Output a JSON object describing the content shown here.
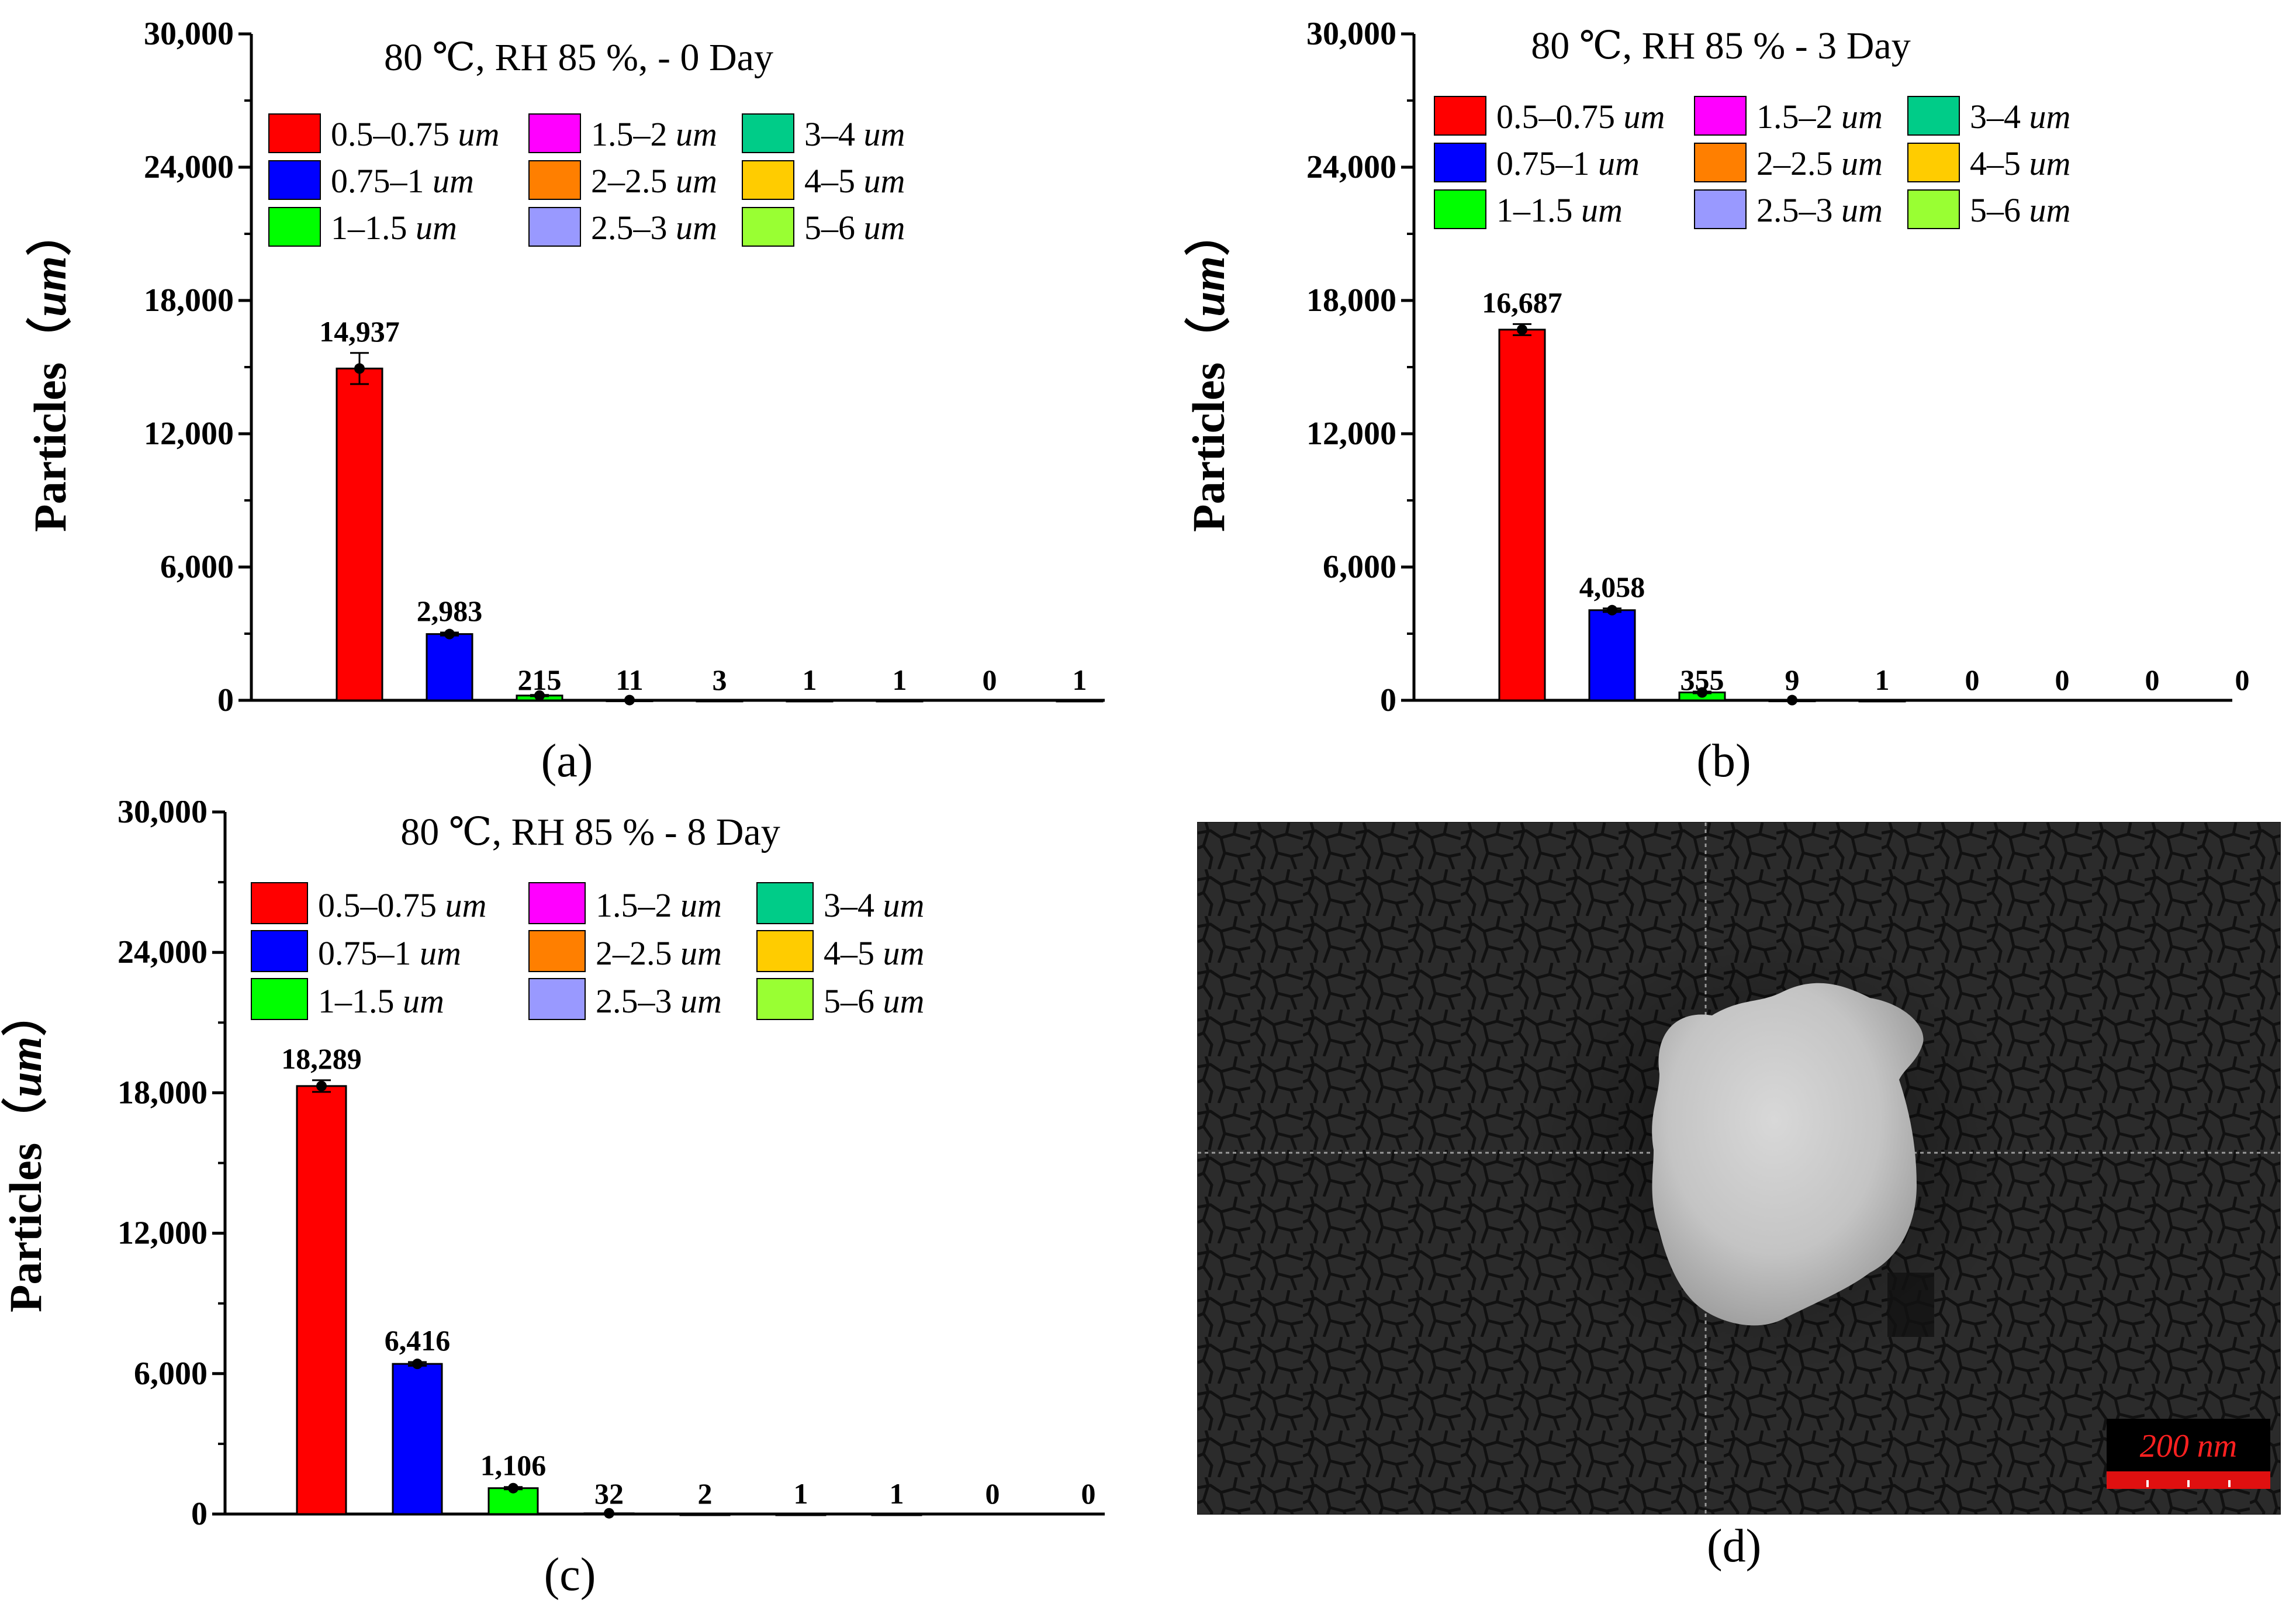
{
  "chart_data": [
    {
      "panel": "a",
      "type": "bar",
      "title": "80 ℃, RH 85 %, - 0 Day",
      "ylabel": "Particles（um）",
      "ylim": [
        0,
        30000
      ],
      "yticks": [
        "0",
        "6,000",
        "12,000",
        "18,000",
        "24,000",
        "30,000"
      ],
      "categories": [
        "0.5–0.75 um",
        "0.75–1 um",
        "1–1.5 um",
        "1.5–2 um",
        "2–2.5 um",
        "2.5–3 um",
        "3–4 um",
        "4–5 um",
        "5–6 um"
      ],
      "values": [
        14937,
        2983,
        215,
        11,
        3,
        1,
        1,
        0,
        1
      ],
      "labels": [
        "14,937",
        "2,983",
        "215",
        "11",
        "3",
        "1",
        "1",
        "0",
        "1"
      ],
      "errors": [
        700,
        70,
        30,
        0,
        0,
        0,
        0,
        0,
        0
      ],
      "caption": "(a)"
    },
    {
      "panel": "b",
      "type": "bar",
      "title": "80 ℃, RH 85 % - 3 Day",
      "ylabel": "Particles（um）",
      "ylim": [
        0,
        30000
      ],
      "yticks": [
        "0",
        "6,000",
        "12,000",
        "18,000",
        "24,000",
        "30,000"
      ],
      "categories": [
        "0.5–0.75 um",
        "0.75–1 um",
        "1–1.5 um",
        "1.5–2 um",
        "2–2.5 um",
        "2.5–3 um",
        "3–4 um",
        "4–5 um",
        "5–6 um"
      ],
      "values": [
        16687,
        4058,
        355,
        9,
        1,
        0,
        0,
        0,
        0
      ],
      "labels": [
        "16,687",
        "4,058",
        "355",
        "9",
        "1",
        "0",
        "0",
        "0",
        "0"
      ],
      "errors": [
        250,
        80,
        40,
        0,
        0,
        0,
        0,
        0,
        0
      ],
      "caption": "(b)"
    },
    {
      "panel": "c",
      "type": "bar",
      "title": "80 ℃, RH 85 % - 8 Day",
      "ylabel": "Particles（um）",
      "ylim": [
        0,
        30000
      ],
      "yticks": [
        "0",
        "6,000",
        "12,000",
        "18,000",
        "24,000",
        "30,000"
      ],
      "categories": [
        "0.5–0.75 um",
        "0.75–1 um",
        "1–1.5 um",
        "1.5–2 um",
        "2–2.5 um",
        "2.5–3 um",
        "3–4 um",
        "4–5 um",
        "5–6 um"
      ],
      "values": [
        18289,
        6416,
        1106,
        32,
        2,
        1,
        1,
        0,
        0
      ],
      "labels": [
        "18,289",
        "6,416",
        "1,106",
        "32",
        "2",
        "1",
        "1",
        "0",
        "0"
      ],
      "errors": [
        250,
        80,
        50,
        0,
        0,
        0,
        0,
        0,
        0
      ],
      "caption": "(c)"
    }
  ],
  "legend": [
    {
      "range": "0.5–0.75",
      "unit": "um",
      "color": "#ff0000"
    },
    {
      "range": "0.75–1",
      "unit": "um",
      "color": "#0000ff"
    },
    {
      "range": "1–1.5",
      "unit": "um",
      "color": "#00ff00"
    },
    {
      "range": "1.5–2",
      "unit": "um",
      "color": "#ff00ff"
    },
    {
      "range": "2–2.5",
      "unit": "um",
      "color": "#ff7f00"
    },
    {
      "range": "2.5–3",
      "unit": "um",
      "color": "#9999ff"
    },
    {
      "range": "3–4",
      "unit": "um",
      "color": "#00cc88"
    },
    {
      "range": "4–5",
      "unit": "um",
      "color": "#ffcc00"
    },
    {
      "range": "5–6",
      "unit": "um",
      "color": "#99ff33"
    }
  ],
  "sem": {
    "scale_bar": "200 nm",
    "caption": "(d)",
    "scale_color": "#e01010",
    "scale_text_color": "#ff2020"
  }
}
